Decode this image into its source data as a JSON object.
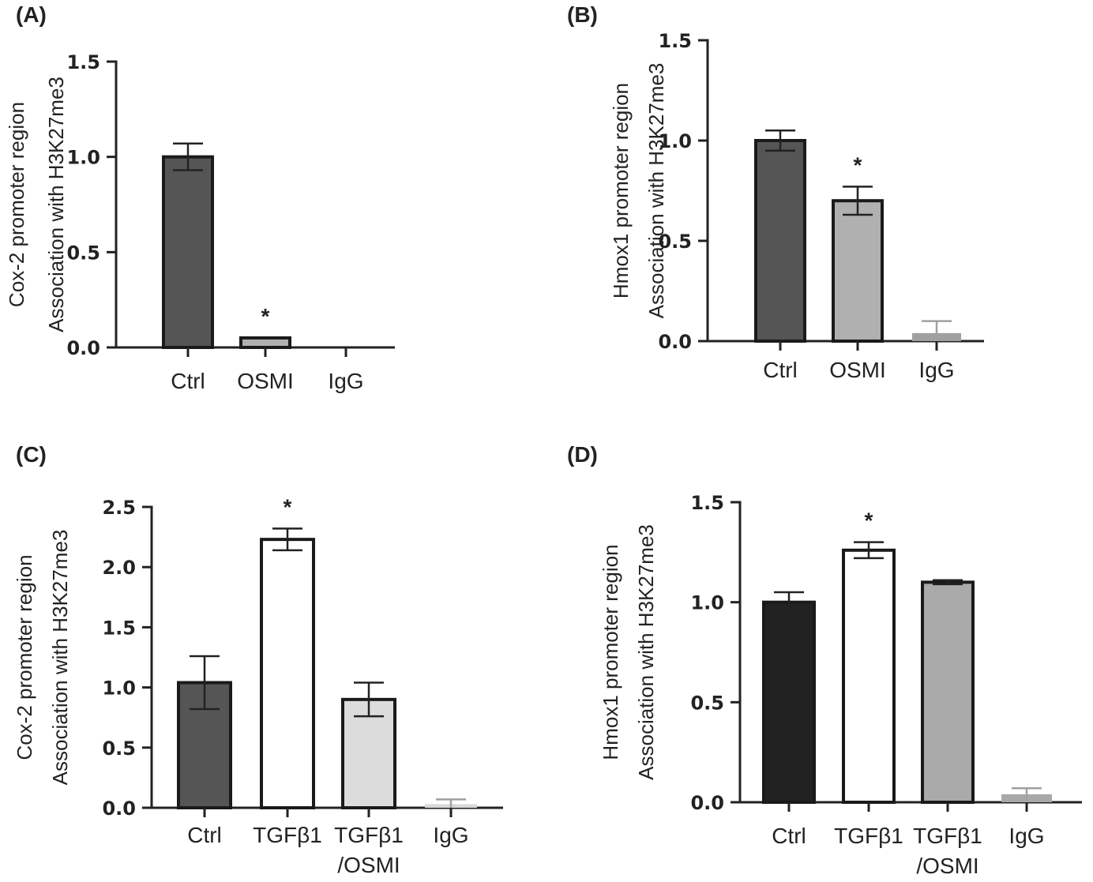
{
  "chart_data": [
    {
      "type": "bar",
      "panel_label": "(A)",
      "ylabel_lines": [
        "Cox-2 promoter region",
        "Association with H3K27me3"
      ],
      "categories": [
        [
          "Ctrl"
        ],
        [
          "OSMI"
        ],
        [
          "IgG"
        ]
      ],
      "values": [
        1.0,
        0.05,
        0.0
      ],
      "errors": [
        0.07,
        0.0,
        0.0
      ],
      "colors": [
        "#555555",
        "#b0b0b0",
        "#ffffff"
      ],
      "significance": [
        "",
        "*",
        ""
      ],
      "ylim": [
        0,
        1.5
      ],
      "yticks": [
        "0.0",
        "0.5",
        "1.0",
        "1.5"
      ]
    },
    {
      "type": "bar",
      "panel_label": "(B)",
      "ylabel_lines": [
        "Hmox1 promoter region",
        "Association with H3K27me3"
      ],
      "categories": [
        [
          "Ctrl"
        ],
        [
          "OSMI"
        ],
        [
          "IgG"
        ]
      ],
      "values": [
        1.0,
        0.7,
        0.04
      ],
      "errors": [
        0.05,
        0.07,
        0.06
      ],
      "colors": [
        "#555555",
        "#b0b0b0",
        "#a0a0a0"
      ],
      "significance": [
        "",
        "*",
        ""
      ],
      "ylim": [
        0,
        1.5
      ],
      "yticks": [
        "0.0",
        "0.5",
        "1.0",
        "1.5"
      ]
    },
    {
      "type": "bar",
      "panel_label": "(C)",
      "ylabel_lines": [
        "Cox-2 promoter region",
        "Association with H3K27me3"
      ],
      "categories": [
        [
          "Ctrl"
        ],
        [
          "TGFβ1"
        ],
        [
          "TGFβ1",
          "/OSMI"
        ],
        [
          "IgG"
        ]
      ],
      "values": [
        1.04,
        2.23,
        0.9,
        0.03
      ],
      "errors": [
        0.22,
        0.09,
        0.14,
        0.04
      ],
      "colors": [
        "#555555",
        "#ffffff",
        "#dcdcdc",
        "#d8d8d8"
      ],
      "significance": [
        "",
        "*",
        "",
        ""
      ],
      "ylim": [
        0,
        2.5
      ],
      "yticks": [
        "0.0",
        "0.5",
        "1.0",
        "1.5",
        "2.0",
        "2.5"
      ]
    },
    {
      "type": "bar",
      "panel_label": "(D)",
      "ylabel_lines": [
        "Hmox1 promoter region",
        "Association with H3K27me3"
      ],
      "categories": [
        [
          "Ctrl"
        ],
        [
          "TGFβ1"
        ],
        [
          "TGFβ1",
          "/OSMI"
        ],
        [
          "IgG"
        ]
      ],
      "values": [
        1.0,
        1.26,
        1.1,
        0.04
      ],
      "errors": [
        0.05,
        0.04,
        0.01,
        0.03
      ],
      "colors": [
        "#222222",
        "#ffffff",
        "#aaaaaa",
        "#a8a8a8"
      ],
      "significance": [
        "",
        "*",
        "",
        ""
      ],
      "ylim": [
        0,
        1.5
      ],
      "yticks": [
        "0.0",
        "0.5",
        "1.0",
        "1.5"
      ]
    }
  ]
}
